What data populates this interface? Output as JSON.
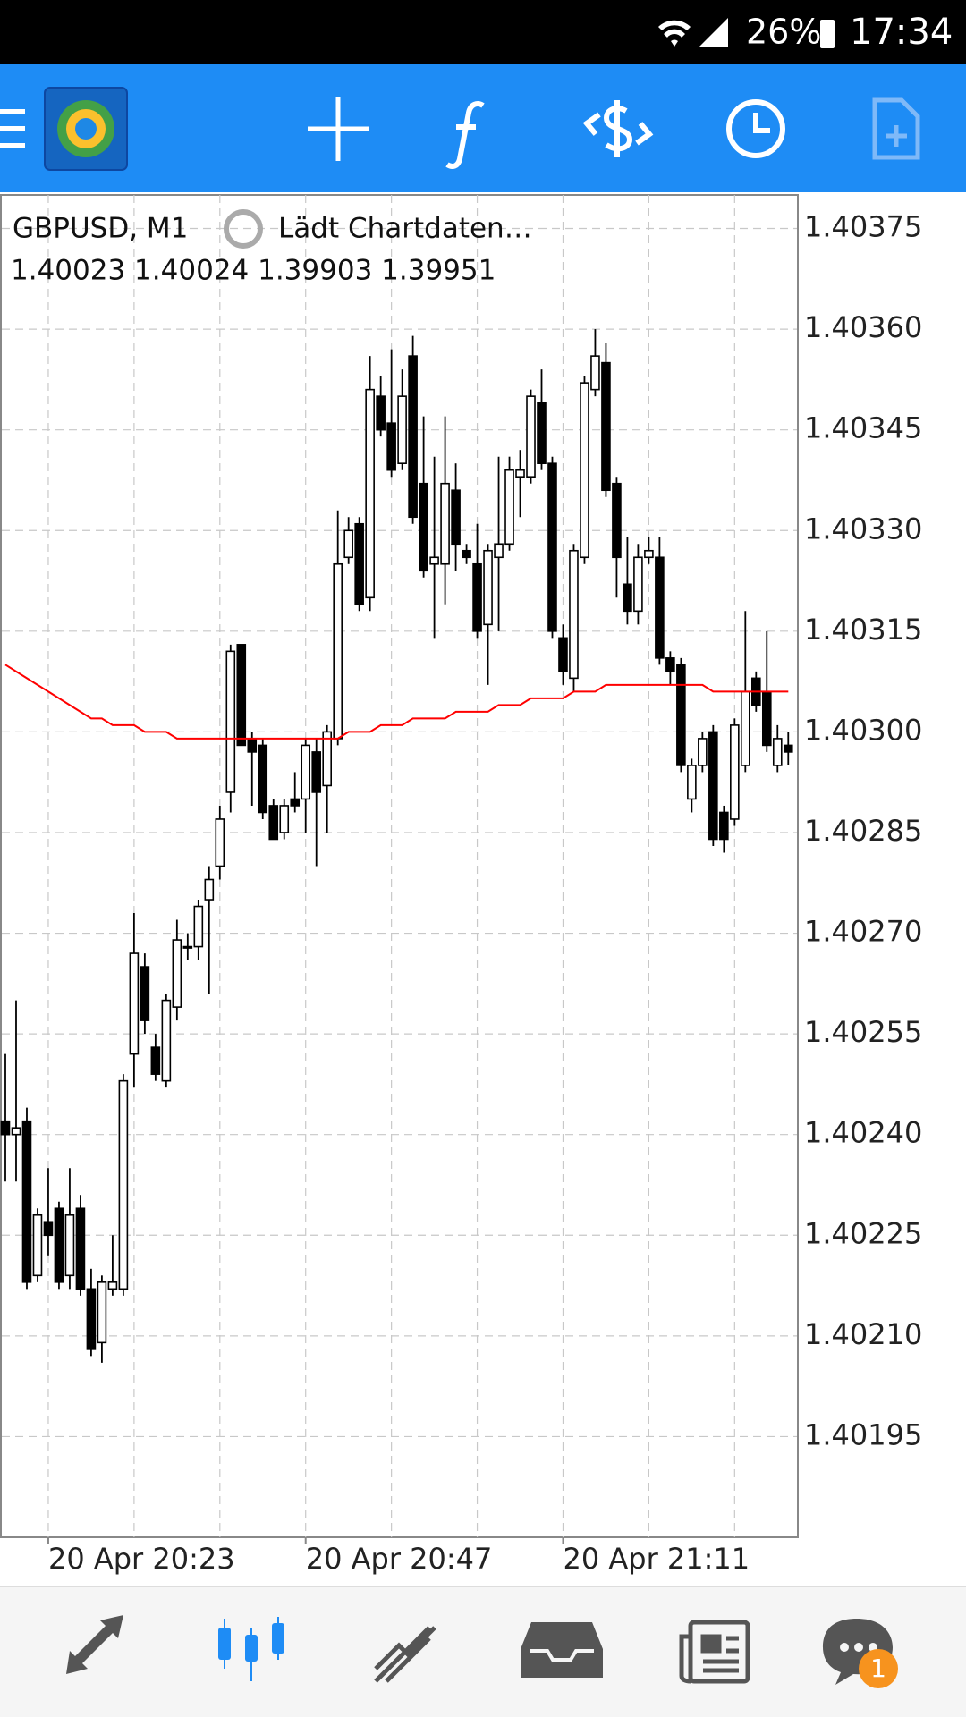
{
  "status_bar": {
    "battery": "26%",
    "time": "17:34"
  },
  "chart_data": {
    "type": "candlestick",
    "symbol": "GBPUSD, M1",
    "status": "Lädt Chartdaten…",
    "quote": "1.40023 1.40024 1.39903 1.39951",
    "categories": [
      null,
      null,
      null,
      null,
      "20 Apr 20:23",
      null,
      null,
      null,
      null,
      null,
      null,
      null,
      null,
      null,
      null,
      null,
      null,
      null,
      null,
      null,
      null,
      null,
      null,
      null,
      null,
      null,
      null,
      null,
      "20 Apr 20:47",
      null,
      null,
      null,
      null,
      null,
      null,
      null,
      null,
      null,
      null,
      null,
      null,
      null,
      null,
      null,
      null,
      null,
      null,
      null,
      null,
      null,
      null,
      null,
      "20 Apr 21:11",
      null,
      null,
      null,
      null,
      null,
      null,
      null,
      null,
      null,
      null,
      null,
      null,
      null,
      null,
      null,
      null,
      null,
      null,
      null,
      null,
      null
    ],
    "open": [
      1.40242,
      1.4024,
      1.40242,
      1.40219,
      1.40227,
      1.40229,
      1.40219,
      1.40229,
      1.40217,
      1.40209,
      1.40217,
      1.40217,
      1.40252,
      1.40265,
      1.40253,
      1.40248,
      1.40259,
      1.40268,
      1.40268,
      1.40275,
      1.4028,
      1.40291,
      1.40313,
      1.40299,
      1.40298,
      1.40289,
      1.40285,
      1.4029,
      1.4029,
      1.40297,
      1.40292,
      1.40299,
      1.40326,
      1.40331,
      1.4032,
      1.4035,
      1.40346,
      1.4034,
      1.40356,
      1.40337,
      1.40325,
      1.40325,
      1.40336,
      1.40327,
      1.40325,
      1.40316,
      1.40326,
      1.40328,
      1.40338,
      1.40338,
      1.40349,
      1.4034,
      1.40314,
      1.40308,
      1.40326,
      1.40351,
      1.40355,
      1.40337,
      1.40322,
      1.40318,
      1.40326,
      1.40326,
      1.40311,
      1.4031,
      1.4029,
      1.40295,
      1.403,
      1.40288,
      1.40287,
      1.40295,
      1.40308,
      1.40306,
      1.40295,
      1.40298
    ],
    "high": [
      1.40252,
      1.4026,
      1.40244,
      1.40229,
      1.40235,
      1.4023,
      1.40235,
      1.40231,
      1.4022,
      1.40219,
      1.40225,
      1.40249,
      1.40273,
      1.40267,
      1.40255,
      1.40261,
      1.40272,
      1.4027,
      1.40275,
      1.4028,
      1.40289,
      1.40313,
      1.40313,
      1.403,
      1.40299,
      1.4029,
      1.4029,
      1.40294,
      1.40299,
      1.40299,
      1.40301,
      1.40333,
      1.40332,
      1.40332,
      1.40356,
      1.40353,
      1.40357,
      1.40354,
      1.40359,
      1.40347,
      1.40341,
      1.40347,
      1.4034,
      1.40328,
      1.40331,
      1.40328,
      1.40341,
      1.40341,
      1.40342,
      1.40351,
      1.40354,
      1.40341,
      1.40316,
      1.40328,
      1.40353,
      1.4036,
      1.40358,
      1.40338,
      1.40329,
      1.40328,
      1.40329,
      1.40329,
      1.40312,
      1.40311,
      1.40296,
      1.403,
      1.40301,
      1.40289,
      1.40302,
      1.40318,
      1.40309,
      1.40315,
      1.40301,
      1.403
    ],
    "low": [
      1.40233,
      1.40233,
      1.40217,
      1.40218,
      1.40222,
      1.40217,
      1.40217,
      1.40216,
      1.40207,
      1.40206,
      1.40216,
      1.40216,
      1.40247,
      1.40255,
      1.40248,
      1.40247,
      1.40257,
      1.40266,
      1.40266,
      1.40261,
      1.40278,
      1.40288,
      1.40298,
      1.40289,
      1.40287,
      1.40284,
      1.40284,
      1.40288,
      1.40285,
      1.4028,
      1.40285,
      1.40298,
      1.40325,
      1.40318,
      1.40318,
      1.40344,
      1.40338,
      1.40339,
      1.40331,
      1.40323,
      1.40314,
      1.40319,
      1.40324,
      1.40325,
      1.40314,
      1.40307,
      1.40315,
      1.40327,
      1.40332,
      1.40337,
      1.40339,
      1.40314,
      1.40307,
      1.40306,
      1.40325,
      1.4035,
      1.40335,
      1.4032,
      1.40316,
      1.40316,
      1.40325,
      1.4031,
      1.40307,
      1.40294,
      1.40288,
      1.40294,
      1.40283,
      1.40282,
      1.40286,
      1.40294,
      1.40303,
      1.40297,
      1.40294,
      1.40295
    ],
    "close": [
      1.4024,
      1.40241,
      1.40218,
      1.40228,
      1.40225,
      1.40218,
      1.40228,
      1.40217,
      1.40208,
      1.40218,
      1.40218,
      1.40248,
      1.40267,
      1.40257,
      1.40249,
      1.4026,
      1.40269,
      1.40268,
      1.40274,
      1.40278,
      1.40287,
      1.40312,
      1.40298,
      1.40297,
      1.40288,
      1.40284,
      1.40289,
      1.40289,
      1.40298,
      1.40291,
      1.403,
      1.40325,
      1.4033,
      1.40319,
      1.40351,
      1.40345,
      1.40339,
      1.4035,
      1.40332,
      1.40324,
      1.40326,
      1.40337,
      1.40328,
      1.40326,
      1.40315,
      1.40327,
      1.40328,
      1.40339,
      1.40339,
      1.4035,
      1.4034,
      1.40315,
      1.40309,
      1.40327,
      1.40352,
      1.40356,
      1.40336,
      1.40326,
      1.40318,
      1.40326,
      1.40327,
      1.40311,
      1.40309,
      1.40295,
      1.40295,
      1.40299,
      1.40284,
      1.40284,
      1.40301,
      1.40306,
      1.40304,
      1.40298,
      1.40299,
      1.40297
    ],
    "up_color": "#ffffff",
    "down_color": "#000000",
    "moving_average": {
      "color": "#ff0000",
      "values": [
        1.4031,
        1.40309,
        1.40308,
        1.40307,
        1.40306,
        1.40305,
        1.40304,
        1.40303,
        1.40302,
        1.40302,
        1.40301,
        1.40301,
        1.40301,
        1.403,
        1.403,
        1.403,
        1.40299,
        1.40299,
        1.40299,
        1.40299,
        1.40299,
        1.40299,
        1.40299,
        1.40299,
        1.40299,
        1.40299,
        1.40299,
        1.40299,
        1.40299,
        1.40299,
        1.40299,
        1.40299,
        1.403,
        1.403,
        1.403,
        1.40301,
        1.40301,
        1.40301,
        1.40302,
        1.40302,
        1.40302,
        1.40302,
        1.40303,
        1.40303,
        1.40303,
        1.40303,
        1.40304,
        1.40304,
        1.40304,
        1.40305,
        1.40305,
        1.40305,
        1.40305,
        1.40306,
        1.40306,
        1.40306,
        1.40307,
        1.40307,
        1.40307,
        1.40307,
        1.40307,
        1.40307,
        1.40307,
        1.40307,
        1.40307,
        1.40307,
        1.40306,
        1.40306,
        1.40306,
        1.40306,
        1.40306,
        1.40306,
        1.40306,
        1.40306
      ]
    },
    "ylim": [
      1.4018,
      1.4038
    ],
    "yticks": [
      1.40375,
      {
        "value": 1.4036,
        "label": "1.40360"
      },
      1.40345,
      {
        "value": 1.4033,
        "label": "1.40330"
      },
      1.40315,
      {
        "value": 1.403,
        "label": "1.40300"
      },
      1.40285,
      {
        "value": 1.4027,
        "label": "1.40270"
      },
      1.40255,
      {
        "value": 1.4024,
        "label": "1.40240"
      },
      1.40225,
      {
        "value": 1.4021,
        "label": "1.40210"
      },
      1.40195
    ],
    "grid": true
  },
  "bottom_nav": {
    "badge": 1
  }
}
